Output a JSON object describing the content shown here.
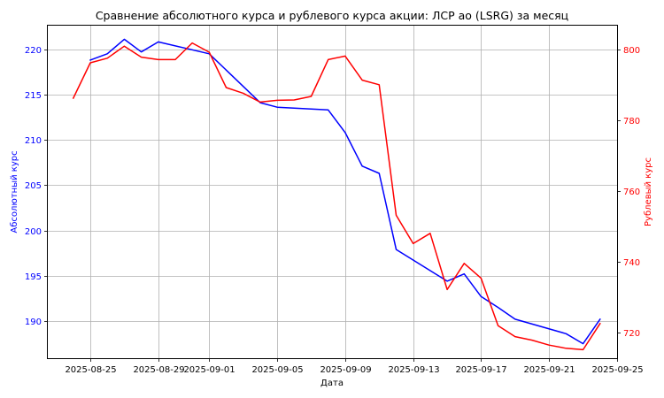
{
  "chart_data": {
    "type": "line",
    "title": "Сравнение абсолютного курса и рублевого курса акции: ЛСР ао (LSRG) за месяц",
    "xlabel": "Дата",
    "ylabel_left": "Абсолютный курс",
    "ylabel_right": "Рублевый курс",
    "grid": true,
    "x_ticks": [
      "2025-08-25",
      "2025-08-29",
      "2025-09-01",
      "2025-09-05",
      "2025-09-09",
      "2025-09-13",
      "2025-09-17",
      "2025-09-21",
      "2025-09-25"
    ],
    "y_left_ticks": [
      190,
      195,
      200,
      205,
      210,
      215,
      220
    ],
    "y_right_ticks": [
      720,
      740,
      760,
      780,
      800
    ],
    "ylim_left": [
      185.9,
      222.6
    ],
    "ylim_right": [
      712.8,
      806.8
    ],
    "xlim": [
      "2025-08-22T12:00",
      "2025-09-25T00:00"
    ],
    "colors": {
      "absolute": "#0000ff",
      "ruble": "#ff0000",
      "grid": "#b0b0b0"
    },
    "series": [
      {
        "name": "Абсолютный курс",
        "axis": "left",
        "x": [
          "2025-08-25",
          "2025-08-26",
          "2025-08-27",
          "2025-08-28",
          "2025-08-29",
          "2025-09-01",
          "2025-09-04",
          "2025-09-05",
          "2025-09-08",
          "2025-09-09",
          "2025-09-10",
          "2025-09-11",
          "2025-09-12",
          "2025-09-15",
          "2025-09-16",
          "2025-09-17",
          "2025-09-18",
          "2025-09-19",
          "2025-09-22",
          "2025-09-23",
          "2025-09-24"
        ],
        "values": [
          218.8,
          219.5,
          221.1,
          219.7,
          220.8,
          219.5,
          214.1,
          213.6,
          213.3,
          210.8,
          207.1,
          206.3,
          197.9,
          194.4,
          195.2,
          192.7,
          191.5,
          190.2,
          188.6,
          187.5,
          190.2
        ]
      },
      {
        "name": "Рублевый курс",
        "axis": "right",
        "x": [
          "2025-08-24",
          "2025-08-25",
          "2025-08-26",
          "2025-08-27",
          "2025-08-28",
          "2025-08-29",
          "2025-08-30",
          "2025-08-31",
          "2025-09-01",
          "2025-09-02",
          "2025-09-03",
          "2025-09-04",
          "2025-09-05",
          "2025-09-06",
          "2025-09-07",
          "2025-09-08",
          "2025-09-09",
          "2025-09-10",
          "2025-09-11",
          "2025-09-12",
          "2025-09-13",
          "2025-09-14",
          "2025-09-15",
          "2025-09-16",
          "2025-09-17",
          "2025-09-18",
          "2025-09-19",
          "2025-09-20",
          "2025-09-21",
          "2025-09-22",
          "2025-09-23",
          "2025-09-24"
        ],
        "values": [
          786.3,
          796.3,
          797.6,
          801.0,
          797.9,
          797.2,
          797.2,
          801.9,
          799.3,
          789.3,
          787.7,
          785.2,
          785.7,
          785.8,
          786.8,
          797.2,
          798.2,
          791.4,
          790.1,
          753.2,
          745.2,
          748.1,
          732.2,
          739.6,
          735.4,
          722.0,
          718.9,
          717.9,
          716.5,
          715.6,
          715.2,
          722.6
        ]
      }
    ]
  }
}
